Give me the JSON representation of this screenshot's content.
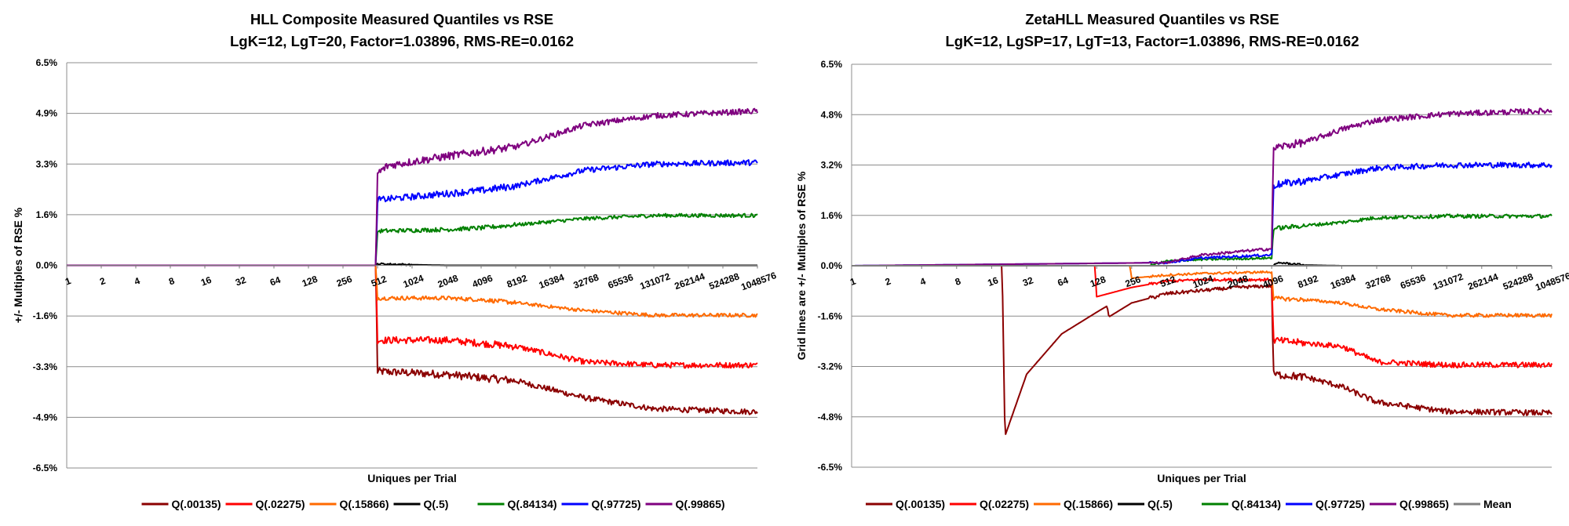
{
  "chart_data": [
    {
      "type": "line",
      "title": "HLL Composite Measured Quantiles vs RSE",
      "subtitle": "LgK=12, LgT=20, Factor=1.03896, RMS-RE=0.0162",
      "xlabel": "Uniques per Trial",
      "ylabel": "+/-  Multiples of RSE %",
      "x_scale": "log2",
      "x_ticks": [
        "1",
        "2",
        "4",
        "8",
        "16",
        "32",
        "64",
        "128",
        "256",
        "512",
        "1024",
        "2048",
        "4096",
        "8192",
        "16384",
        "32768",
        "65536",
        "131072",
        "262144",
        "524288",
        "1048576"
      ],
      "y_ticks": [
        "6.5%",
        "4.9%",
        "3.3%",
        "1.6%",
        "0.0%",
        "-1.6%",
        "-3.3%",
        "-4.9%",
        "-6.5%"
      ],
      "ylim": [
        -6.5,
        6.5
      ],
      "grid": "horizontal",
      "legend": "bottom",
      "series": [
        {
          "name": "Q(.00135)",
          "color": "#8b0000",
          "knots": [
            [
              0,
              0
            ],
            [
              8.95,
              0
            ],
            [
              9.0,
              -3.4
            ],
            [
              11,
              -3.5
            ],
            [
              12,
              -3.6
            ],
            [
              13,
              -3.7
            ],
            [
              15,
              -4.25
            ],
            [
              17,
              -4.6
            ],
            [
              20,
              -4.7
            ]
          ]
        },
        {
          "name": "Q(.02275)",
          "color": "#ff0000",
          "knots": [
            [
              0,
              0
            ],
            [
              8.95,
              0
            ],
            [
              9.0,
              -2.4
            ],
            [
              11,
              -2.4
            ],
            [
              12,
              -2.5
            ],
            [
              13,
              -2.6
            ],
            [
              15,
              -3.1
            ],
            [
              17,
              -3.2
            ],
            [
              20,
              -3.2
            ]
          ]
        },
        {
          "name": "Q(.15866)",
          "color": "#ff6a00",
          "knots": [
            [
              0,
              0
            ],
            [
              8.95,
              0
            ],
            [
              9.0,
              -1.05
            ],
            [
              11,
              -1.05
            ],
            [
              12,
              -1.1
            ],
            [
              13,
              -1.2
            ],
            [
              15,
              -1.45
            ],
            [
              17,
              -1.6
            ],
            [
              20,
              -1.6
            ]
          ]
        },
        {
          "name": "Q(.5)",
          "color": "#000000",
          "knots": [
            [
              0,
              0
            ],
            [
              8.95,
              0
            ],
            [
              9.0,
              0.05
            ],
            [
              10,
              0.02
            ],
            [
              11,
              0
            ],
            [
              20,
              0
            ]
          ]
        },
        {
          "name": "Q(.84134)",
          "color": "#008000",
          "knots": [
            [
              0,
              0
            ],
            [
              8.95,
              0
            ],
            [
              9.0,
              1.1
            ],
            [
              11,
              1.15
            ],
            [
              12,
              1.2
            ],
            [
              13,
              1.3
            ],
            [
              15,
              1.5
            ],
            [
              17,
              1.6
            ],
            [
              20,
              1.6
            ]
          ]
        },
        {
          "name": "Q(.97725)",
          "color": "#0000ff",
          "knots": [
            [
              0,
              0
            ],
            [
              8.95,
              0
            ],
            [
              9.0,
              2.1
            ],
            [
              11,
              2.3
            ],
            [
              12,
              2.4
            ],
            [
              13,
              2.55
            ],
            [
              15,
              3.05
            ],
            [
              17,
              3.25
            ],
            [
              20,
              3.3
            ]
          ]
        },
        {
          "name": "Q(.99865)",
          "color": "#7f007f",
          "knots": [
            [
              0,
              0
            ],
            [
              8.95,
              0
            ],
            [
              9.0,
              2.95
            ],
            [
              9.3,
              3.2
            ],
            [
              11,
              3.5
            ],
            [
              13,
              3.8
            ],
            [
              15,
              4.5
            ],
            [
              17,
              4.8
            ],
            [
              20,
              4.95
            ]
          ]
        }
      ]
    },
    {
      "type": "line",
      "title": "ZetaHLL Measured Quantiles vs RSE",
      "subtitle": "LgK=12, LgSP=17, LgT=13, Factor=1.03896, RMS-RE=0.0162",
      "xlabel": "Uniques per Trial",
      "ylabel": "Grid lines are +/-  Multiples of RSE %",
      "x_scale": "log2",
      "x_ticks": [
        "1",
        "2",
        "4",
        "8",
        "16",
        "32",
        "64",
        "128",
        "256",
        "512",
        "1024",
        "2048",
        "4096",
        "8192",
        "16384",
        "32768",
        "65536",
        "131072",
        "262144",
        "524288",
        "1048576"
      ],
      "y_ticks": [
        "6.5%",
        "4.8%",
        "3.2%",
        "1.6%",
        "0.0%",
        "-1.6%",
        "-3.2%",
        "-4.8%",
        "-6.5%"
      ],
      "ylim": [
        -6.5,
        6.5
      ],
      "grid": "horizontal",
      "legend": "bottom",
      "series": [
        {
          "name": "Q(.00135)",
          "color": "#8b0000",
          "knots": [
            [
              0,
              0
            ],
            [
              4.3,
              0
            ],
            [
              4.38,
              -5.5
            ],
            [
              5,
              -3.5
            ],
            [
              6,
              -2.2
            ],
            [
              7,
              -1.5
            ],
            [
              7.3,
              -1.3
            ],
            [
              7.35,
              -1.65
            ],
            [
              8,
              -1.2
            ],
            [
              9,
              -0.9
            ],
            [
              10,
              -0.8
            ],
            [
              11,
              -0.7
            ],
            [
              12,
              -0.65
            ],
            [
              12.05,
              -3.5
            ],
            [
              13,
              -3.6
            ],
            [
              14,
              -3.9
            ],
            [
              15,
              -4.4
            ],
            [
              17,
              -4.7
            ],
            [
              20,
              -4.75
            ]
          ]
        },
        {
          "name": "Q(.02275)",
          "color": "#ff0000",
          "knots": [
            [
              0,
              0
            ],
            [
              6.95,
              0
            ],
            [
              7.0,
              -1.0
            ],
            [
              8,
              -0.7
            ],
            [
              9,
              -0.5
            ],
            [
              10,
              -0.45
            ],
            [
              11,
              -0.45
            ],
            [
              12,
              -0.45
            ],
            [
              12.05,
              -2.4
            ],
            [
              13,
              -2.5
            ],
            [
              14,
              -2.6
            ],
            [
              15,
              -3.1
            ],
            [
              17,
              -3.2
            ],
            [
              20,
              -3.2
            ]
          ]
        },
        {
          "name": "Q(.15866)",
          "color": "#ff6a00",
          "knots": [
            [
              0,
              0
            ],
            [
              7.95,
              0
            ],
            [
              8.0,
              -0.4
            ],
            [
              9,
              -0.3
            ],
            [
              10,
              -0.25
            ],
            [
              12,
              -0.2
            ],
            [
              12.05,
              -1.05
            ],
            [
              13,
              -1.1
            ],
            [
              14,
              -1.2
            ],
            [
              15,
              -1.4
            ],
            [
              17,
              -1.6
            ],
            [
              20,
              -1.6
            ]
          ]
        },
        {
          "name": "Q(.5)",
          "color": "#000000",
          "knots": [
            [
              0,
              0
            ],
            [
              12.05,
              0
            ],
            [
              12.2,
              0.1
            ],
            [
              13,
              0.02
            ],
            [
              14,
              0
            ],
            [
              20,
              0
            ]
          ]
        },
        {
          "name": "Q(.84134)",
          "color": "#008000",
          "knots": [
            [
              0,
              0
            ],
            [
              8.5,
              0
            ],
            [
              9,
              0.15
            ],
            [
              10,
              0.2
            ],
            [
              12,
              0.25
            ],
            [
              12.05,
              1.2
            ],
            [
              13,
              1.3
            ],
            [
              14,
              1.4
            ],
            [
              15,
              1.55
            ],
            [
              17,
              1.6
            ],
            [
              20,
              1.6
            ]
          ]
        },
        {
          "name": "Q(.97725)",
          "color": "#0000ff",
          "knots": [
            [
              0,
              0
            ],
            [
              9,
              0.1
            ],
            [
              10,
              0.25
            ],
            [
              12,
              0.35
            ],
            [
              12.05,
              2.6
            ],
            [
              13,
              2.75
            ],
            [
              14,
              2.95
            ],
            [
              15,
              3.15
            ],
            [
              17,
              3.25
            ],
            [
              20,
              3.25
            ]
          ]
        },
        {
          "name": "Q(.99865)",
          "color": "#7f007f",
          "knots": [
            [
              0,
              0
            ],
            [
              9,
              0.1
            ],
            [
              10,
              0.35
            ],
            [
              12,
              0.55
            ],
            [
              12.05,
              3.8
            ],
            [
              13,
              4.0
            ],
            [
              14,
              4.4
            ],
            [
              15,
              4.7
            ],
            [
              17,
              4.9
            ],
            [
              20,
              5.0
            ]
          ]
        },
        {
          "name": "Mean",
          "color": "#808080",
          "knots": [
            [
              0,
              0
            ],
            [
              20,
              0
            ]
          ]
        }
      ]
    }
  ]
}
